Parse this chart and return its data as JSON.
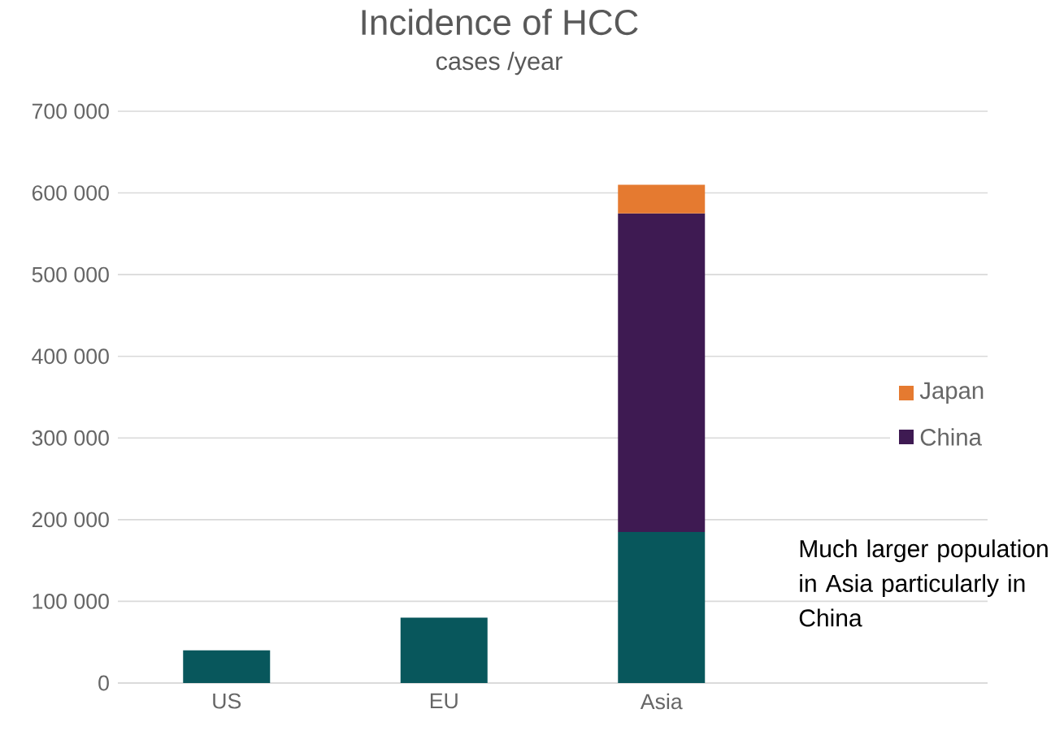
{
  "chart_data": {
    "type": "bar",
    "title": "Incidence of HCC",
    "subtitle": "cases /year",
    "categories": [
      "US",
      "EU",
      "Asia",
      null
    ],
    "series": [
      {
        "color": "#08575c",
        "values": [
          40000,
          80000,
          185000,
          null
        ]
      },
      {
        "name": "China",
        "color": "#3e1a52",
        "values": [
          null,
          null,
          390000,
          null
        ]
      },
      {
        "name": "Japan",
        "color": "#e57a30",
        "values": [
          null,
          null,
          35000,
          null
        ]
      }
    ],
    "stacked": true,
    "ylim": [
      0,
      700000
    ],
    "yticks": [
      0,
      {
        "value": 100000,
        "label": "100 000"
      },
      {
        "value": 200000,
        "label": "200 000"
      },
      {
        "value": 300000,
        "label": "300 000"
      },
      {
        "value": 400000,
        "label": "400 000"
      },
      {
        "value": 500000,
        "label": "500 000"
      },
      {
        "value": 600000,
        "label": "600 000"
      },
      {
        "value": 700000,
        "label": "700 000"
      }
    ],
    "grid": "y",
    "legend": "right",
    "annotations": [
      "Much larger population in Asia particularly in China"
    ]
  }
}
